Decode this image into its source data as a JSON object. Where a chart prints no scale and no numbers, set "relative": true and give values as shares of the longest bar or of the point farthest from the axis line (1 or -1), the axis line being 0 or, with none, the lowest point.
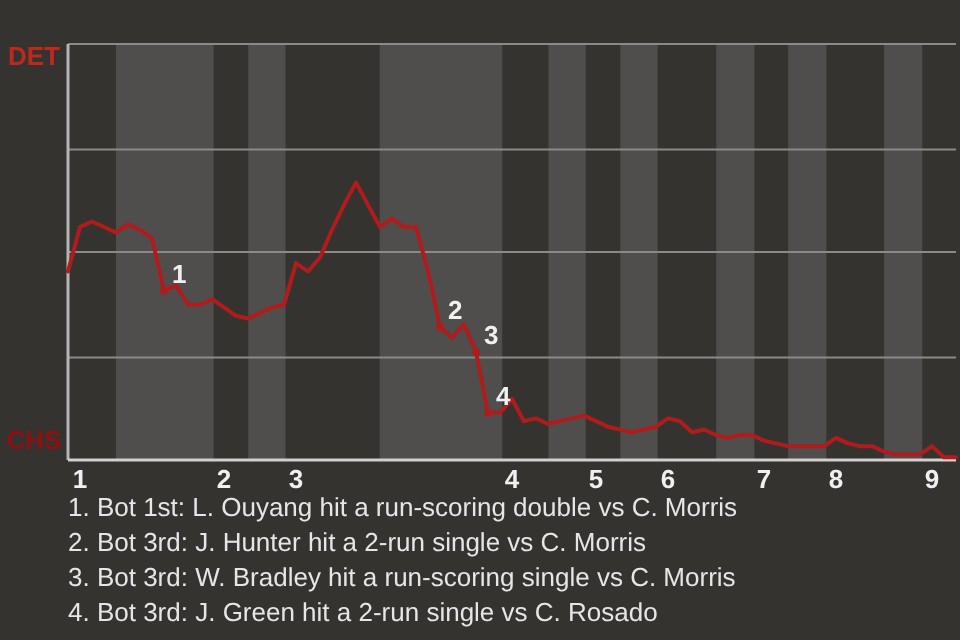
{
  "chart_data": {
    "type": "line",
    "relative": true,
    "categories": [
      null,
      "1",
      null,
      null,
      null,
      null,
      null,
      null,
      null,
      null,
      null,
      null,
      null,
      "2",
      null,
      null,
      null,
      null,
      null,
      "3",
      null,
      null,
      null,
      null,
      null,
      null,
      null,
      null,
      null,
      null,
      null,
      null,
      null,
      null,
      null,
      null,
      null,
      "4",
      null,
      null,
      null,
      null,
      null,
      null,
      "5",
      null,
      null,
      null,
      null,
      null,
      "6",
      null,
      null,
      null,
      null,
      null,
      null,
      null,
      "7",
      null,
      null,
      null,
      null,
      null,
      "8",
      null,
      null,
      null,
      null,
      null,
      null,
      null,
      "9",
      null,
      null
    ],
    "marker": "none",
    "line_style": "solid",
    "ref_lines": [
      {
        "axis": "y",
        "value": 0.37,
        "color": "#8a8a88"
      },
      {
        "axis": "y",
        "value": 0.75,
        "color": "#8a8a88"
      },
      {
        "axis": "y",
        "value": 1.12,
        "color": "#8a8a88"
      },
      {
        "axis": "y",
        "value": 1.5,
        "color": "#8a8a88"
      }
    ],
    "series": [
      {
        "color": "#b01c1c",
        "values": [
          0.68,
          0.84,
          0.86,
          0.84,
          0.82,
          0.85,
          0.83,
          0.8,
          0.61,
          0.63,
          0.56,
          0.56,
          0.58,
          0.55,
          0.52,
          0.51,
          0.53,
          0.55,
          0.56,
          0.71,
          0.68,
          0.73,
          0.83,
          0.92,
          1,
          0.92,
          0.84,
          0.87,
          0.84,
          0.84,
          0.68,
          0.48,
          0.44,
          0.49,
          0.39,
          0.17,
          0.17,
          0.22,
          0.14,
          0.15,
          0.13,
          0.14,
          0.15,
          0.16,
          0.14,
          0.12,
          0.11,
          0.1,
          0.11,
          0.12,
          0.15,
          0.14,
          0.1,
          0.11,
          0.09,
          0.08,
          0.09,
          0.09,
          0.07,
          0.06,
          0.05,
          0.05,
          0.05,
          0.05,
          0.08,
          0.06,
          0.05,
          0.05,
          0.03,
          0.02,
          0.02,
          0.02,
          0.05,
          0.01,
          0.01
        ]
      },
      {
        "name": "1",
        "color": "#b01c1c",
        "marker": "circle",
        "values": [
          null,
          null,
          null,
          null,
          null,
          null,
          null,
          null,
          0.61,
          null,
          null,
          null,
          null,
          null,
          null,
          null,
          null,
          null,
          null,
          null,
          null,
          null,
          null,
          null,
          null,
          null,
          null,
          null,
          null,
          null,
          null,
          null,
          null,
          null,
          null,
          null,
          null,
          null,
          null,
          null,
          null,
          null,
          null,
          null,
          null,
          null,
          null,
          null,
          null,
          null,
          null,
          null,
          null,
          null,
          null,
          null,
          null,
          null,
          null,
          null,
          null,
          null,
          null,
          null,
          null,
          null,
          null,
          null,
          null,
          null,
          null,
          null,
          null,
          null,
          null
        ]
      },
      {
        "name": "2",
        "color": "#b01c1c",
        "marker": "circle",
        "values": [
          null,
          null,
          null,
          null,
          null,
          null,
          null,
          null,
          null,
          null,
          null,
          null,
          null,
          null,
          null,
          null,
          null,
          null,
          null,
          null,
          null,
          null,
          null,
          null,
          null,
          null,
          null,
          null,
          null,
          null,
          null,
          0.48,
          null,
          null,
          null,
          null,
          null,
          null,
          null,
          null,
          null,
          null,
          null,
          null,
          null,
          null,
          null,
          null,
          null,
          null,
          null,
          null,
          null,
          null,
          null,
          null,
          null,
          null,
          null,
          null,
          null,
          null,
          null,
          null,
          null,
          null,
          null,
          null,
          null,
          null,
          null,
          null,
          null,
          null,
          null
        ]
      },
      {
        "name": "3",
        "color": "#b01c1c",
        "marker": "circle",
        "values": [
          null,
          null,
          null,
          null,
          null,
          null,
          null,
          null,
          null,
          null,
          null,
          null,
          null,
          null,
          null,
          null,
          null,
          null,
          null,
          null,
          null,
          null,
          null,
          null,
          null,
          null,
          null,
          null,
          null,
          null,
          null,
          null,
          null,
          null,
          0.39,
          null,
          null,
          null,
          null,
          null,
          null,
          null,
          null,
          null,
          null,
          null,
          null,
          null,
          null,
          null,
          null,
          null,
          null,
          null,
          null,
          null,
          null,
          null,
          null,
          null,
          null,
          null,
          null,
          null,
          null,
          null,
          null,
          null,
          null,
          null,
          null,
          null,
          null,
          null,
          null
        ]
      },
      {
        "name": "4",
        "color": "#b01c1c",
        "marker": "circle",
        "values": [
          null,
          null,
          null,
          null,
          null,
          null,
          null,
          null,
          null,
          null,
          null,
          null,
          null,
          null,
          null,
          null,
          null,
          null,
          null,
          null,
          null,
          null,
          null,
          null,
          null,
          null,
          null,
          null,
          null,
          null,
          null,
          null,
          null,
          null,
          null,
          0.17,
          null,
          null,
          null,
          null,
          null,
          null,
          null,
          null,
          null,
          null,
          null,
          null,
          null,
          null,
          null,
          null,
          null,
          null,
          null,
          null,
          null,
          null,
          null,
          null,
          null,
          null,
          null,
          null,
          null,
          null,
          null,
          null,
          null,
          null,
          null,
          null,
          null,
          null,
          null
        ]
      }
    ],
    "annotations": [
      "DET",
      "CHS",
      "1. Bot 1st: L. Ouyang hit a run-scoring double vs C. Morris",
      "2. Bot 3rd: J. Hunter hit a 2-run single vs C. Morris",
      "3. Bot 3rd: W. Bradley hit a run-scoring single vs C. Morris",
      "4. Bot 3rd: J. Green hit a 2-run single vs C. Rosado"
    ]
  }
}
